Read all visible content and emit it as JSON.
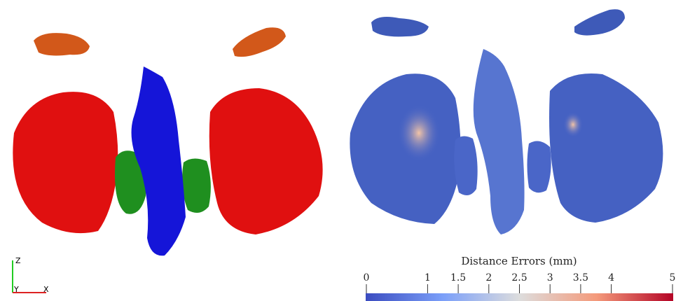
{
  "axes_triad": {
    "labels": [
      "Z",
      "Y",
      "X"
    ]
  },
  "colorbar": {
    "title": "Distance Errors (mm)",
    "lim": [
      0,
      5
    ],
    "ticks": [
      0,
      1,
      1.5,
      2,
      2.5,
      3,
      3.5,
      4,
      5
    ]
  }
}
